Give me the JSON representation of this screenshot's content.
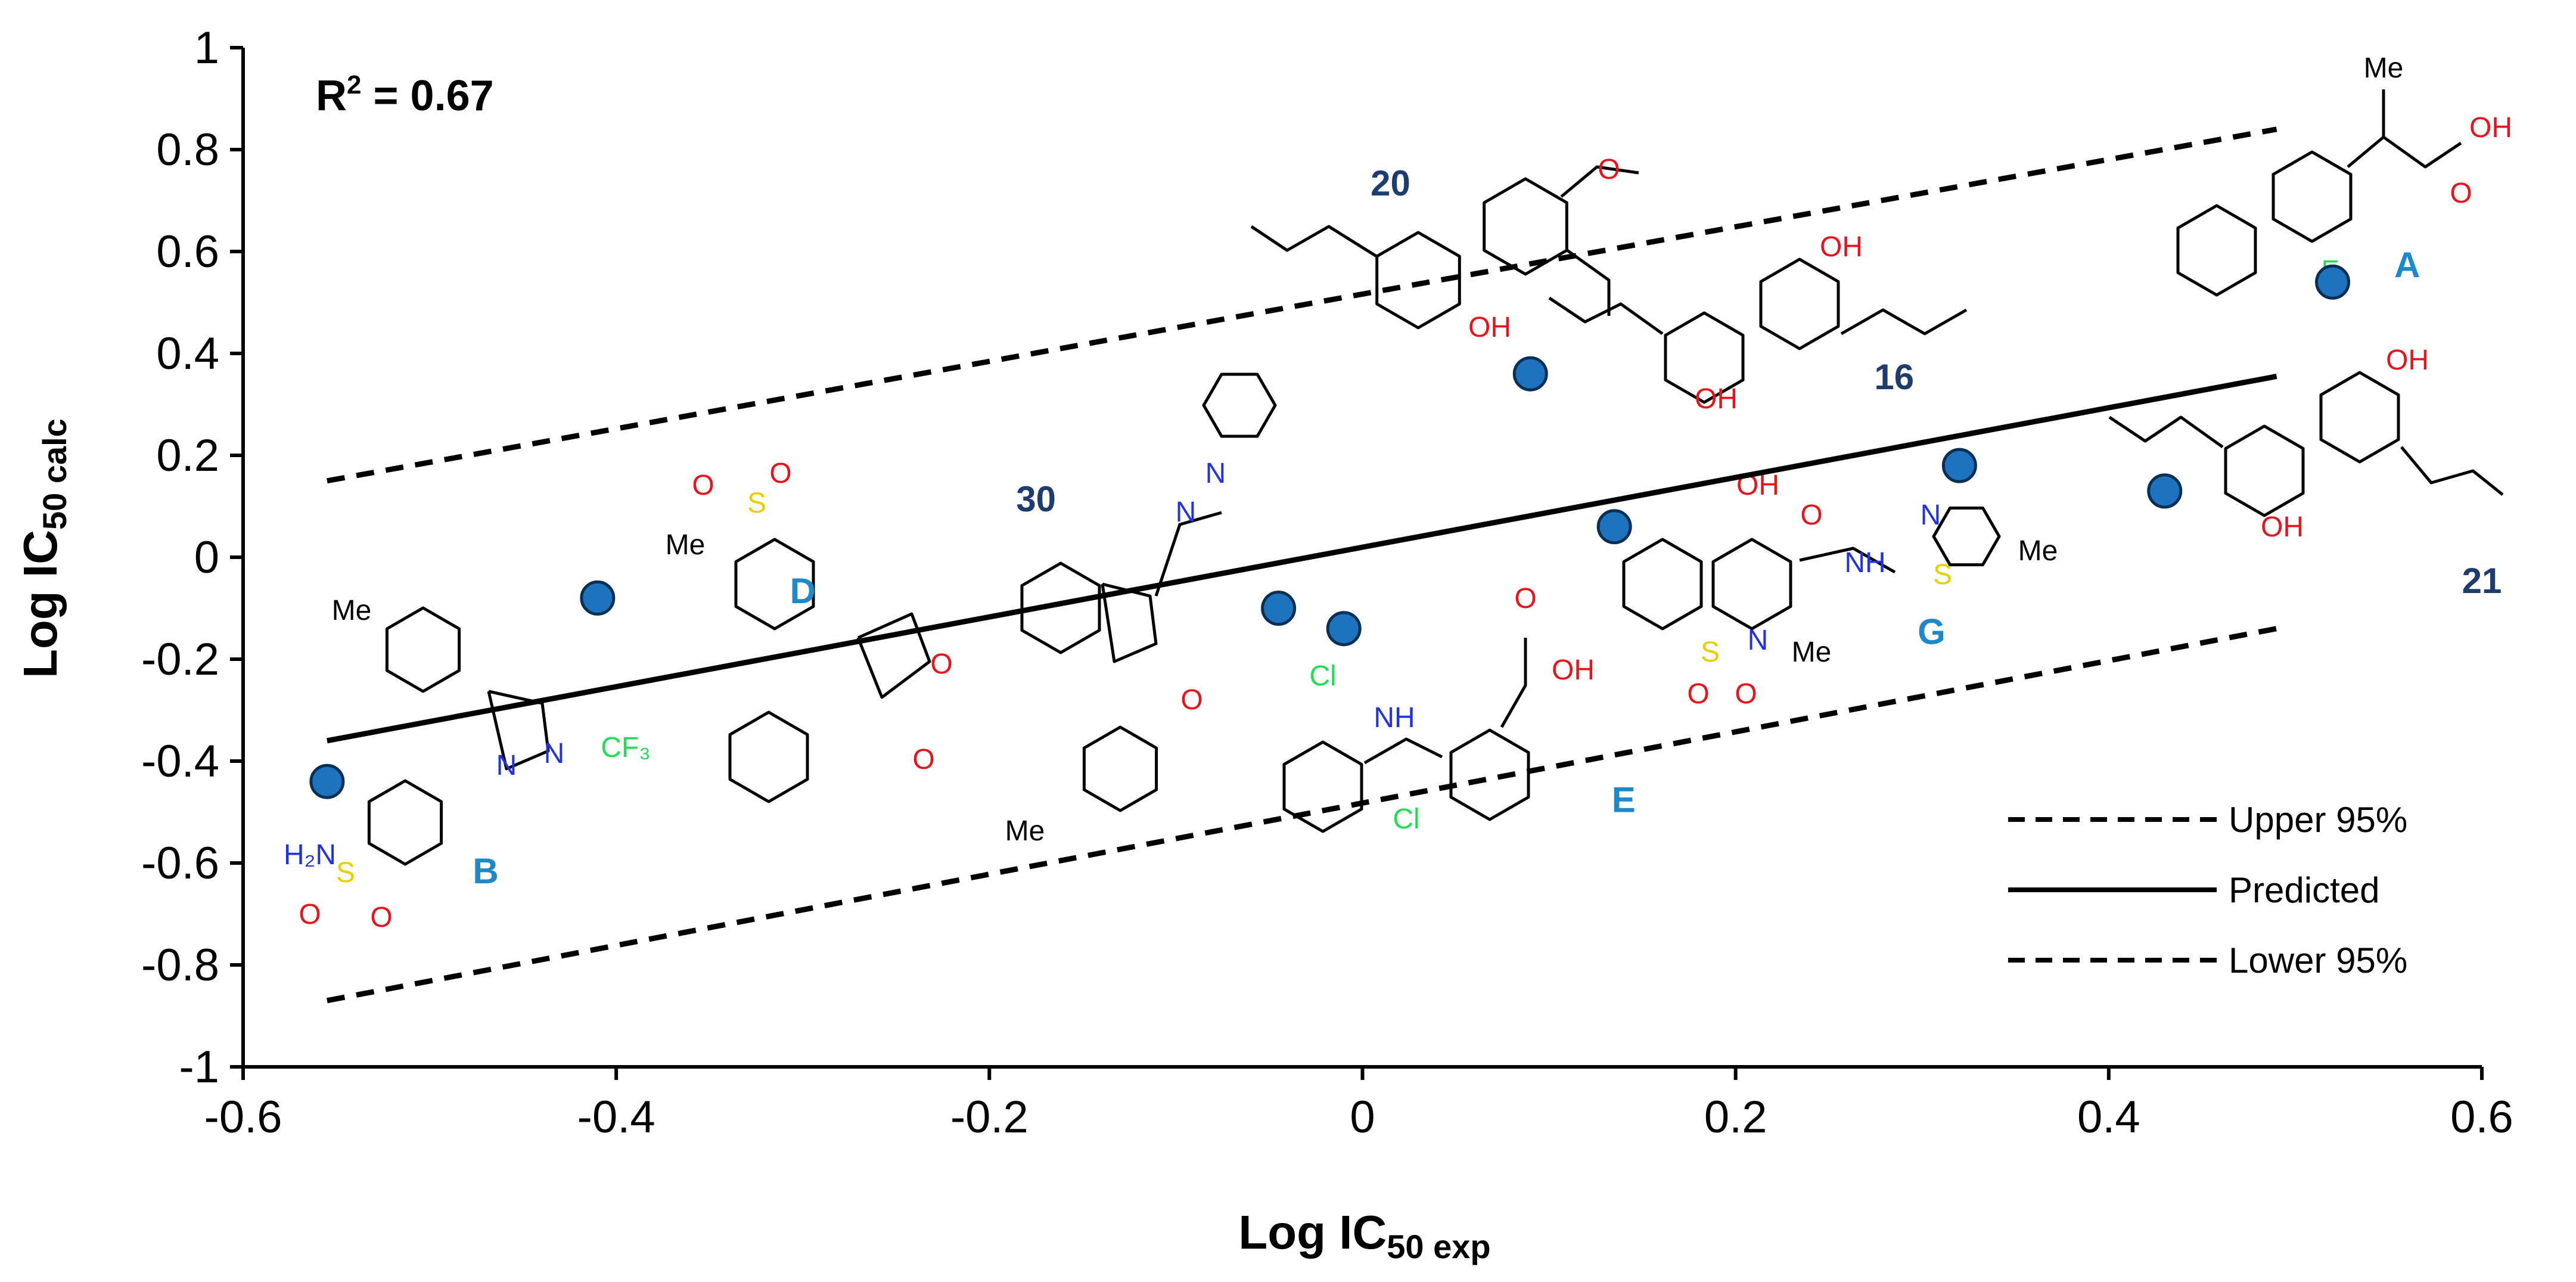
{
  "chart_data": {
    "type": "scatter",
    "xlabel": "Log IC",
    "xlabel_sub": "50 exp",
    "ylabel": "Log IC",
    "ylabel_sub": "50 calc",
    "xlim": [
      -0.6,
      0.6
    ],
    "ylim": [
      -1,
      1
    ],
    "x_ticks": [
      "-0.6",
      "-0.4",
      "-0.2",
      "0",
      "0.2",
      "0.4",
      "0.6"
    ],
    "y_ticks": [
      "1",
      "0.8",
      "0.6",
      "0.4",
      "0.2",
      "0",
      "-0.2",
      "-0.4",
      "-0.6",
      "-0.8",
      "-1"
    ],
    "annotation": {
      "r2_prefix": "R",
      "r2_sup": "2",
      "r2_value": " = 0.67"
    },
    "points": [
      {
        "x": -0.555,
        "y": -0.44
      },
      {
        "x": -0.41,
        "y": -0.08
      },
      {
        "x": -0.045,
        "y": -0.1
      },
      {
        "x": -0.01,
        "y": -0.14
      },
      {
        "x": 0.09,
        "y": 0.36
      },
      {
        "x": 0.135,
        "y": 0.06
      },
      {
        "x": 0.32,
        "y": 0.18
      },
      {
        "x": 0.43,
        "y": 0.13
      },
      {
        "x": 0.52,
        "y": 0.54
      }
    ],
    "lines": [
      {
        "name": "Upper 95%",
        "style": "dashed",
        "x": [
          -0.555,
          0.49
        ],
        "y": [
          0.15,
          0.84
        ]
      },
      {
        "name": "Predicted",
        "style": "solid",
        "x": [
          -0.555,
          0.49
        ],
        "y": [
          -0.36,
          0.355
        ]
      },
      {
        "name": "Lower 95%",
        "style": "dashed",
        "x": [
          -0.555,
          0.49
        ],
        "y": [
          -0.87,
          -0.14
        ]
      }
    ],
    "legend_position": "bottom-right",
    "compound_labels": [
      {
        "label": "20",
        "kind": "number",
        "x": 0.015,
        "y": 0.71
      },
      {
        "label": "16",
        "kind": "number",
        "x": 0.285,
        "y": 0.33
      },
      {
        "label": "30",
        "kind": "number",
        "x": -0.175,
        "y": 0.09
      },
      {
        "label": "21",
        "kind": "number",
        "x": 0.6,
        "y": -0.07
      },
      {
        "label": "A",
        "kind": "letter",
        "x": 0.56,
        "y": 0.55
      },
      {
        "label": "B",
        "kind": "letter",
        "x": -0.47,
        "y": -0.64
      },
      {
        "label": "D",
        "kind": "letter",
        "x": -0.3,
        "y": -0.09
      },
      {
        "label": "E",
        "kind": "letter",
        "x": 0.14,
        "y": -0.5
      },
      {
        "label": "G",
        "kind": "letter",
        "x": 0.305,
        "y": -0.17
      }
    ],
    "colors": {
      "point_fill": "#1e73be",
      "point_stroke": "#0a2f55",
      "compound_number": "#1f3c6e",
      "compound_letter": "#1e88c8",
      "oxygen": "#e8141c",
      "nitrogen": "#2233dd",
      "sulfur": "#e8d000",
      "halogen": "#22dd55"
    }
  }
}
